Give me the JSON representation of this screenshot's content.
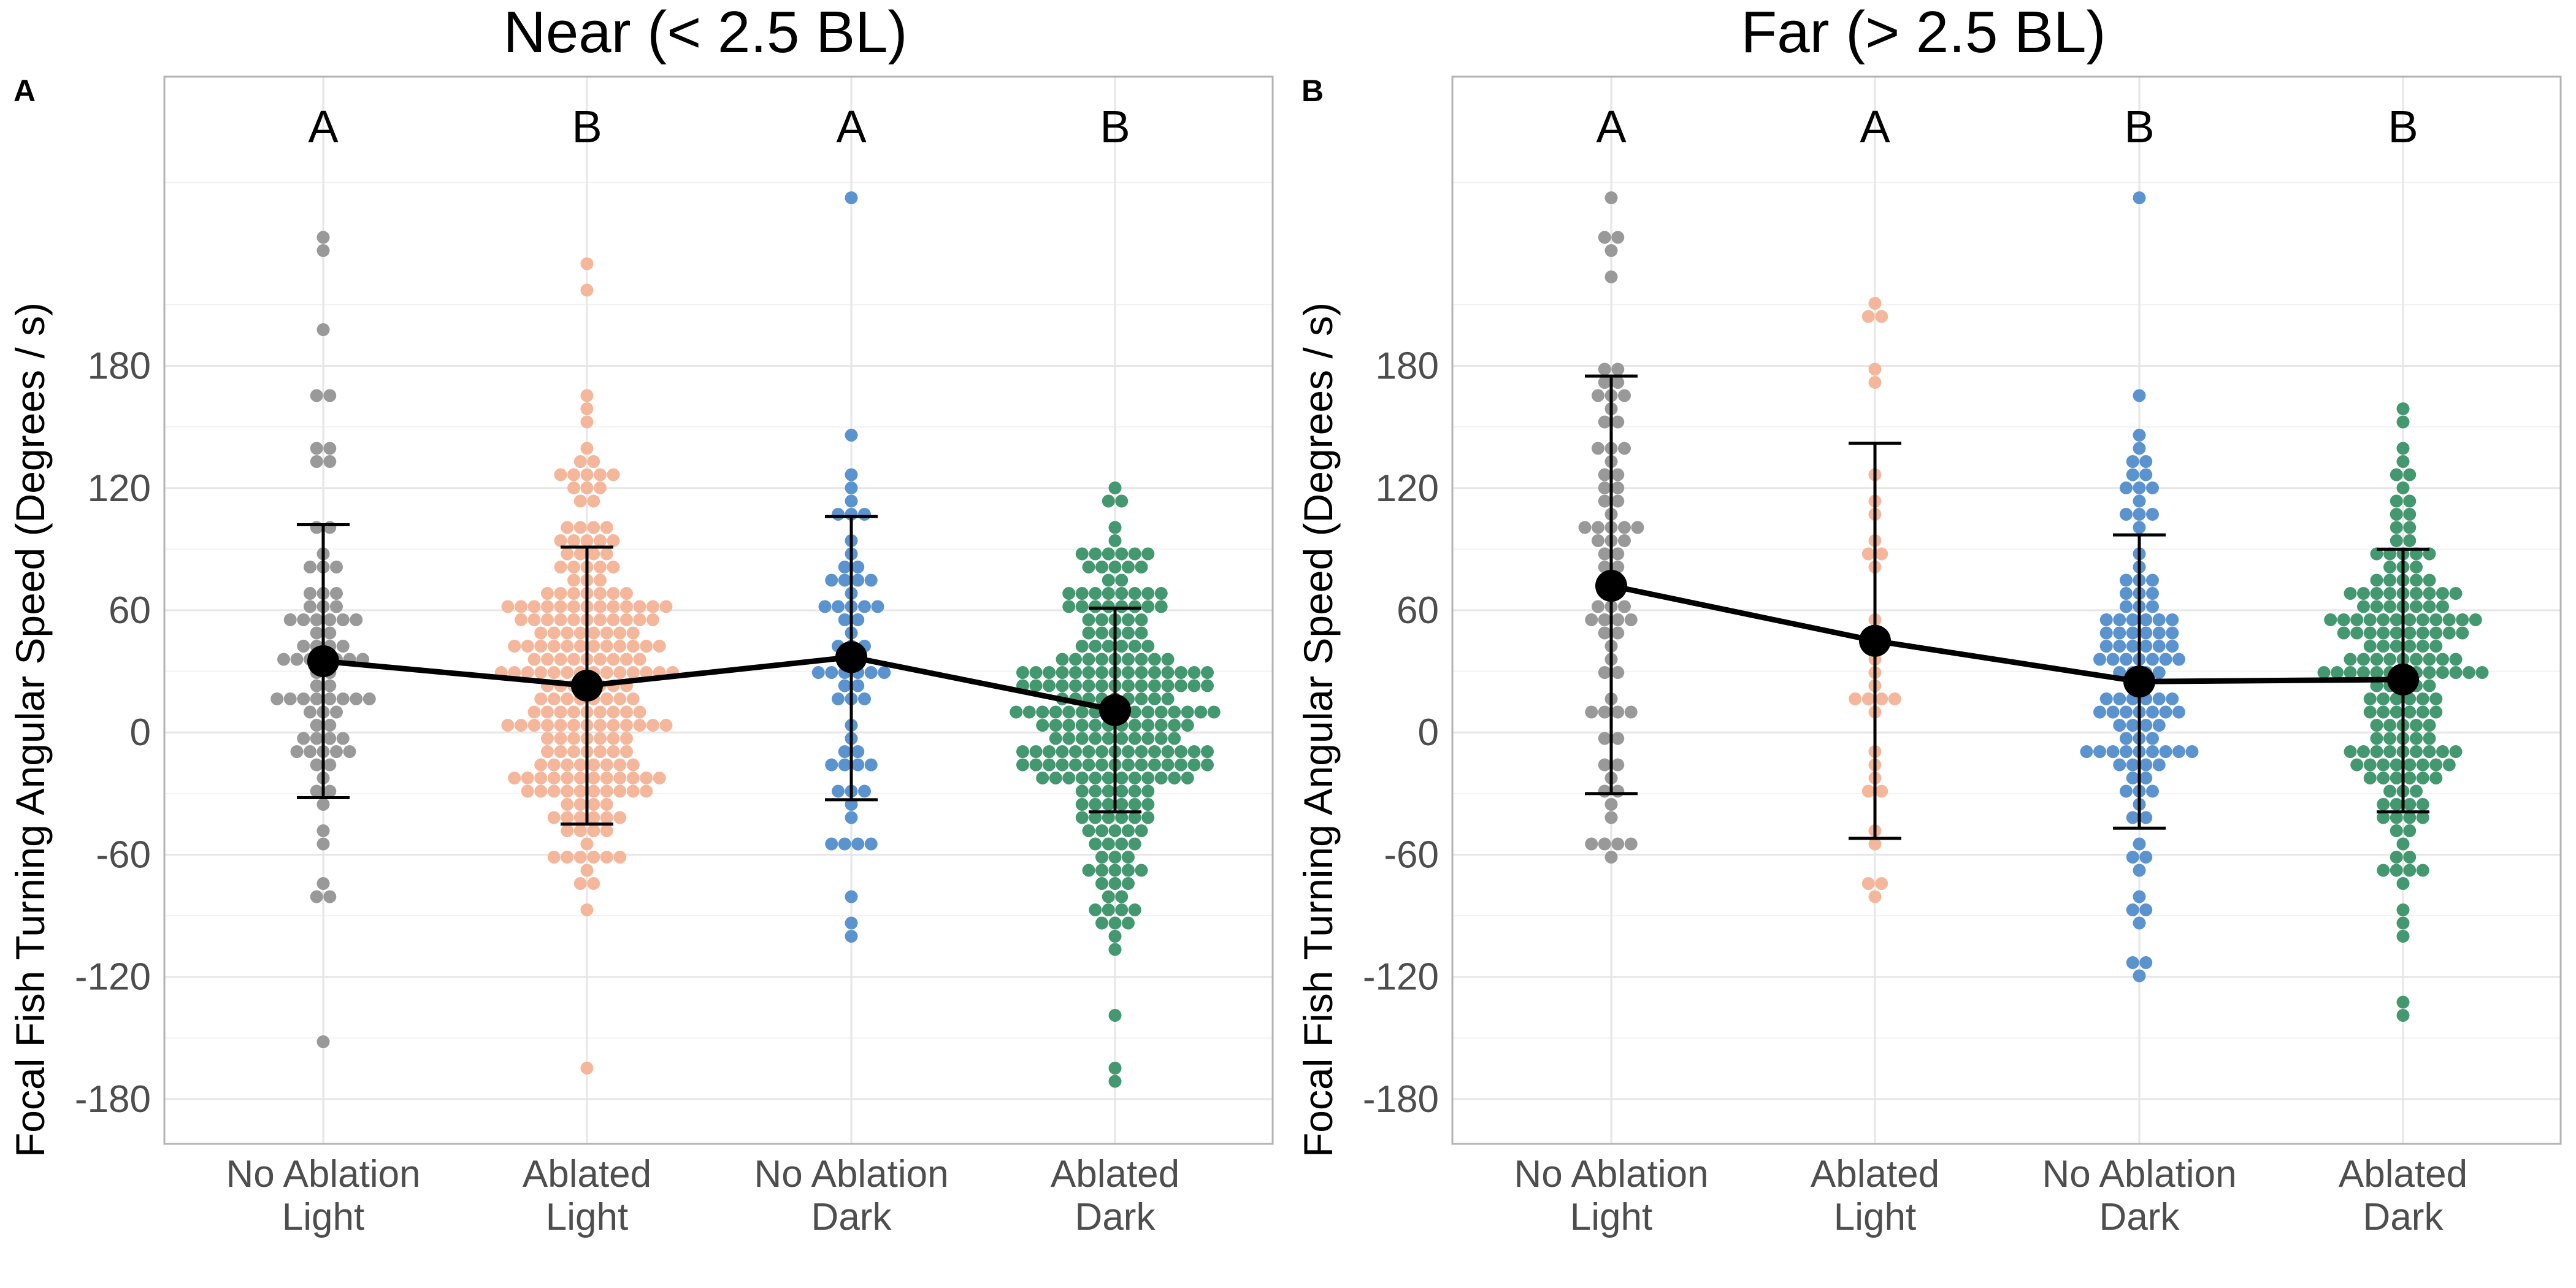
{
  "chart_data": [
    {
      "type": "scatter",
      "panel_tag": "A",
      "title": "Near (< 2.5 BL)",
      "ylabel": "Focal Fish Turning Angular Speed (Degrees / s)",
      "xlabel": "",
      "ylim": [
        -202,
        322
      ],
      "yticks": [
        -180,
        -120,
        -60,
        0,
        60,
        120,
        180
      ],
      "ytick_labels": [
        "-180",
        "-120",
        "-60",
        "0",
        "60",
        "120",
        "180"
      ],
      "grid": true,
      "categories": [
        {
          "line1": "No Ablation",
          "line2": "Light"
        },
        {
          "line1": "Ablated",
          "line2": "Light"
        },
        {
          "line1": "No Ablation",
          "line2": "Dark"
        },
        {
          "line1": "Ablated",
          "line2": "Dark"
        }
      ],
      "groups": [
        {
          "letter": "A",
          "color": "#999999",
          "mean": 35,
          "lower": -32,
          "upper": 102,
          "n": 78,
          "min": -152,
          "max": 240
        },
        {
          "letter": "B",
          "color": "#F4B79B",
          "mean": 23,
          "lower": -45,
          "upper": 91,
          "n": 220,
          "min": -166,
          "max": 228
        },
        {
          "letter": "A",
          "color": "#5B93CF",
          "mean": 37,
          "lower": -33,
          "upper": 106,
          "n": 60,
          "min": -98,
          "max": 260
        },
        {
          "letter": "B",
          "color": "#43986F",
          "mean": 11,
          "lower": -39,
          "upper": 61,
          "n": 230,
          "min": -170,
          "max": 120
        }
      ]
    },
    {
      "type": "scatter",
      "panel_tag": "B",
      "title": "Far (> 2.5 BL)",
      "ylabel": "Focal Fish Turning Angular Speed (Degrees / s)",
      "xlabel": "",
      "ylim": [
        -202,
        322
      ],
      "yticks": [
        -180,
        -120,
        -60,
        0,
        60,
        120,
        180
      ],
      "ytick_labels": [
        "-180",
        "-120",
        "-60",
        "0",
        "60",
        "120",
        "180"
      ],
      "grid": true,
      "categories": [
        {
          "line1": "No Ablation",
          "line2": "Light"
        },
        {
          "line1": "Ablated",
          "line2": "Light"
        },
        {
          "line1": "No Ablation",
          "line2": "Dark"
        },
        {
          "line1": "Ablated",
          "line2": "Dark"
        }
      ],
      "groups": [
        {
          "letter": "A",
          "color": "#999999",
          "mean": 72,
          "lower": -30,
          "upper": 175,
          "n": 72,
          "min": -60,
          "max": 262
        },
        {
          "letter": "A",
          "color": "#F4B79B",
          "mean": 45,
          "lower": -52,
          "upper": 142,
          "n": 34,
          "min": -82,
          "max": 208
        },
        {
          "letter": "B",
          "color": "#5B93CF",
          "mean": 25,
          "lower": -47,
          "upper": 97,
          "n": 110,
          "min": -118,
          "max": 260
        },
        {
          "letter": "B",
          "color": "#43986F",
          "mean": 26,
          "lower": -39,
          "upper": 90,
          "n": 170,
          "min": -140,
          "max": 158
        }
      ]
    }
  ]
}
